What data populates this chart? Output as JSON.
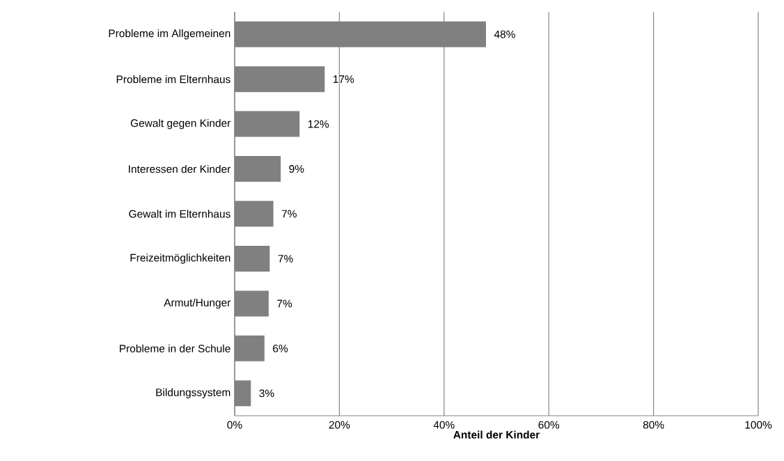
{
  "chart_data": {
    "type": "bar",
    "orientation": "horizontal",
    "xlabel": "Anteil der Kinder",
    "categories": [
      "Probleme im Allgemeinen",
      "Probleme im Elternhaus",
      "Gewalt gegen Kinder",
      "Interessen der Kinder",
      "Gewalt im Elternhaus",
      "Freizeitmöglichkeiten",
      "Armut/Hunger",
      "Probleme in der Schule",
      "Bildungssystem"
    ],
    "values": [
      48.0,
      17.2,
      12.4,
      8.8,
      7.4,
      6.7,
      6.5,
      5.7,
      3.1
    ],
    "value_labels": [
      "48%",
      "17%",
      "12%",
      "9%",
      "7%",
      "7%",
      "7%",
      "6%",
      "3%"
    ],
    "color": "#808080",
    "xlim": [
      0,
      100
    ],
    "xticks": [
      {
        "value": 0,
        "label": "0%"
      },
      {
        "value": 20,
        "label": "20%"
      },
      {
        "value": 40,
        "label": "40%"
      },
      {
        "value": 60,
        "label": "60%"
      },
      {
        "value": 80,
        "label": "80%"
      },
      {
        "value": 100,
        "label": "100%"
      }
    ],
    "grid": "x"
  }
}
